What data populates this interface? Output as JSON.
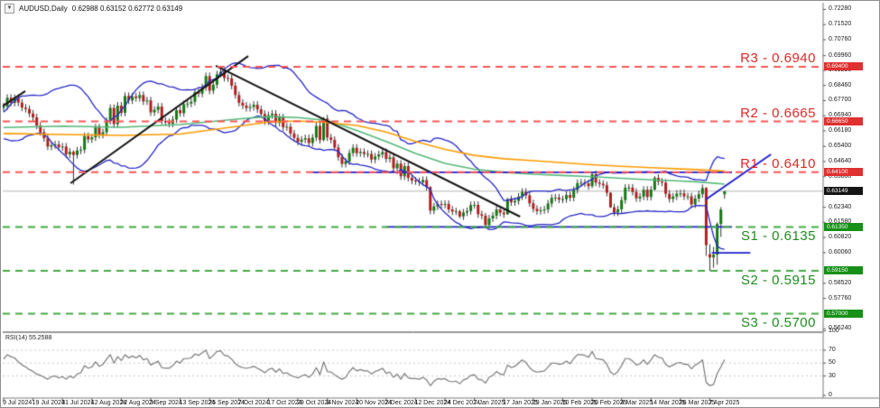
{
  "header": {
    "title_symbol": "AUDUSD,Daily",
    "title_ohlc": "0.62988 0.63152 0.62772 0.63149",
    "dropdown_glyph": "▼"
  },
  "colors": {
    "bull": "#157815",
    "bear": "#b02020",
    "wick": "#333333",
    "bollinger": "#2828c8",
    "ma_fast": "#55b87a",
    "ma_slow": "#ff9c00",
    "trend_black": "#151515",
    "object_blue": "#2020cc",
    "resistance_line": "#ff5555",
    "support_line": "#44aa44",
    "resistance_text": "#e02828",
    "support_text": "#1f8c1f",
    "badge_res": "#e03030",
    "badge_sup": "#169016",
    "badge_price": "#151515",
    "bid_line": "#b5b5b5",
    "rsi_line": "#7a7a7a",
    "rsi_grid": "#c9c9c9",
    "frame": "#8f8f8f"
  },
  "chart_data": {
    "type": "candlestick",
    "symbol": "AUDUSD",
    "timeframe": "Daily",
    "current_ohlc": {
      "open": "0.62988",
      "high": "0.63152",
      "low": "0.62772",
      "close": "0.63149"
    },
    "bid_line": 0.63149,
    "y_axis": {
      "min": 0.5611,
      "max": 0.7262,
      "ticks": [
        "0.72280",
        "0.71520",
        "0.70760",
        "0.69960",
        "0.69220",
        "0.68460",
        "0.67700",
        "0.66940",
        "0.66180",
        "0.65400",
        "0.64640",
        "0.63880",
        "0.62340",
        "0.61580",
        "0.60820",
        "0.60060",
        "0.58520",
        "0.57760",
        "0.56240"
      ]
    },
    "badges": [
      {
        "text": "0.69400",
        "price": 0.694,
        "kind": "res"
      },
      {
        "text": "0.66650",
        "price": 0.6665,
        "kind": "res"
      },
      {
        "text": "0.64100",
        "price": 0.641,
        "kind": "res"
      },
      {
        "text": "0.63149",
        "price": 0.63149,
        "kind": "price"
      },
      {
        "text": "0.61350",
        "price": 0.6135,
        "kind": "sup"
      },
      {
        "text": "0.59150",
        "price": 0.5915,
        "kind": "sup"
      },
      {
        "text": "0.57000",
        "price": 0.57,
        "kind": "sup"
      }
    ],
    "sr_levels": [
      {
        "label": "R3 - 0.6940",
        "price": 0.694,
        "kind": "res"
      },
      {
        "label": "R2 - 0.6665",
        "price": 0.6665,
        "kind": "res"
      },
      {
        "label": "R1 - 0.6410",
        "price": 0.641,
        "kind": "res"
      },
      {
        "label": "S1 - 0.6135",
        "price": 0.6135,
        "kind": "sup"
      },
      {
        "label": "S2 - 0.5915",
        "price": 0.5915,
        "kind": "sup"
      },
      {
        "label": "S3 - 0.5700",
        "price": 0.57,
        "kind": "sup"
      }
    ],
    "x_labels": [
      {
        "text": "9 Jul 2024",
        "bar": 0
      },
      {
        "text": "19 Jul 2024",
        "bar": 8
      },
      {
        "text": "31 Jul 2024",
        "bar": 16
      },
      {
        "text": "12 Aug 2024",
        "bar": 24
      },
      {
        "text": "22 Aug 2024",
        "bar": 32
      },
      {
        "text": "3 Sep 2024",
        "bar": 40
      },
      {
        "text": "13 Sep 2024",
        "bar": 48
      },
      {
        "text": "25 Sep 2024",
        "bar": 56
      },
      {
        "text": "7 Oct 2024",
        "bar": 64
      },
      {
        "text": "17 Oct 2024",
        "bar": 72
      },
      {
        "text": "29 Oct 2024",
        "bar": 80
      },
      {
        "text": "8 Nov 2024",
        "bar": 88
      },
      {
        "text": "20 Nov 2024",
        "bar": 96
      },
      {
        "text": "2 Dec 2024",
        "bar": 104
      },
      {
        "text": "12 Dec 2024",
        "bar": 112
      },
      {
        "text": "24 Dec 2024",
        "bar": 120
      },
      {
        "text": "7 Jan 2025",
        "bar": 128
      },
      {
        "text": "17 Jan 2025",
        "bar": 136
      },
      {
        "text": "29 Jan 2025",
        "bar": 144
      },
      {
        "text": "10 Feb 2025",
        "bar": 152
      },
      {
        "text": "20 Feb 2025",
        "bar": 160
      },
      {
        "text": "4 Mar 2025",
        "bar": 168
      },
      {
        "text": "14 Mar 2025",
        "bar": 176
      },
      {
        "text": "26 Mar 2025",
        "bar": 184
      },
      {
        "text": "7 Apr 2025",
        "bar": 192
      }
    ],
    "candles": {
      "first_open": 0.6733,
      "default_wick": 0.0018,
      "closes": [
        0.6741,
        0.6784,
        0.6759,
        0.6783,
        0.676,
        0.6735,
        0.6728,
        0.6705,
        0.6686,
        0.6644,
        0.6611,
        0.6581,
        0.6539,
        0.6546,
        0.655,
        0.6536,
        0.6539,
        0.65,
        0.6513,
        0.6497,
        0.6519,
        0.6523,
        0.6592,
        0.6575,
        0.6585,
        0.6635,
        0.6598,
        0.6611,
        0.6668,
        0.6733,
        0.6652,
        0.6745,
        0.6709,
        0.6793,
        0.6771,
        0.6791,
        0.6783,
        0.6798,
        0.6766,
        0.6771,
        0.6711,
        0.6724,
        0.674,
        0.6668,
        0.6661,
        0.6654,
        0.6675,
        0.6722,
        0.6707,
        0.6752,
        0.6755,
        0.6764,
        0.6812,
        0.6805,
        0.6837,
        0.6893,
        0.682,
        0.685,
        0.6902,
        0.6915,
        0.6884,
        0.6882,
        0.6845,
        0.6798,
        0.6759,
        0.6745,
        0.6733,
        0.6738,
        0.6749,
        0.6726,
        0.6703,
        0.6666,
        0.6697,
        0.6704,
        0.6658,
        0.6686,
        0.6636,
        0.6639,
        0.6605,
        0.6583,
        0.6563,
        0.6574,
        0.6581,
        0.6557,
        0.6584,
        0.6643,
        0.6572,
        0.668,
        0.6585,
        0.6573,
        0.6534,
        0.6486,
        0.6452,
        0.6464,
        0.6507,
        0.6533,
        0.6506,
        0.6512,
        0.6502,
        0.6502,
        0.6474,
        0.6489,
        0.65,
        0.6512,
        0.6477,
        0.6485,
        0.643,
        0.6453,
        0.639,
        0.6441,
        0.6382,
        0.6368,
        0.6365,
        0.636,
        0.6371,
        0.6336,
        0.6217,
        0.6238,
        0.625,
        0.6246,
        0.6251,
        0.6223,
        0.6213,
        0.6214,
        0.6188,
        0.6208,
        0.6215,
        0.6245,
        0.6246,
        0.6199,
        0.6192,
        0.6145,
        0.6178,
        0.6192,
        0.6223,
        0.6207,
        0.6199,
        0.6275,
        0.6259,
        0.6266,
        0.6288,
        0.6312,
        0.6294,
        0.6254,
        0.6226,
        0.6215,
        0.6219,
        0.6223,
        0.6253,
        0.6281,
        0.6283,
        0.6273,
        0.6275,
        0.6296,
        0.6282,
        0.6321,
        0.6355,
        0.6358,
        0.6354,
        0.634,
        0.64,
        0.6358,
        0.6352,
        0.6345,
        0.6307,
        0.6234,
        0.6208,
        0.6224,
        0.627,
        0.6332,
        0.6333,
        0.6311,
        0.6279,
        0.6288,
        0.6322,
        0.6286,
        0.6323,
        0.6382,
        0.6363,
        0.6358,
        0.6302,
        0.6276,
        0.6288,
        0.6302,
        0.6304,
        0.6289,
        0.6289,
        0.6248,
        0.6278,
        0.63,
        0.6331,
        0.6044,
        0.5982,
        0.5996,
        0.615,
        0.6223,
        0.6315
      ],
      "overrides": {
        "19": [
          0.6513,
          0.652,
          0.6348,
          0.6497
        ],
        "59": [
          0.6902,
          0.6942,
          0.689,
          0.6915
        ],
        "87": [
          0.6572,
          0.6688,
          0.6565,
          0.668
        ],
        "116": [
          0.6336,
          0.634,
          0.6199,
          0.6217
        ],
        "124": [
          0.6214,
          0.6222,
          0.6179,
          0.6188
        ],
        "131": [
          0.6192,
          0.6206,
          0.6131,
          0.6145
        ],
        "137": [
          0.6199,
          0.6282,
          0.6196,
          0.6275
        ],
        "160": [
          0.634,
          0.6408,
          0.633,
          0.64
        ],
        "165": [
          0.6307,
          0.631,
          0.623,
          0.6234
        ],
        "177": [
          0.6323,
          0.6391,
          0.6318,
          0.6382
        ],
        "191": [
          0.6331,
          0.6336,
          0.599,
          0.6044
        ],
        "192": [
          0.5998,
          0.6048,
          0.5915,
          0.5982
        ],
        "193": [
          0.5982,
          0.6035,
          0.593,
          0.5996
        ],
        "194": [
          0.5996,
          0.6158,
          0.5945,
          0.615
        ],
        "195": [
          0.615,
          0.6235,
          0.6085,
          0.6223
        ],
        "196": [
          0.6299,
          0.6315,
          0.6277,
          0.6315
        ]
      }
    },
    "pre_closes": [
      0.6618,
      0.66,
      0.6612,
      0.6607,
      0.6616,
      0.6591,
      0.6639,
      0.6664,
      0.664,
      0.6636,
      0.6646,
      0.6645,
      0.6647,
      0.6664,
      0.6687,
      0.6651,
      0.6662,
      0.6658,
      0.6695,
      0.6733
    ],
    "overlays": {
      "bollinger": {
        "window": 20,
        "mult": 2
      },
      "moving_averages": [
        {
          "name": "ma-fast-green",
          "points": [
            [
              0,
              0.6635
            ],
            [
              16,
              0.6642
            ],
            [
              32,
              0.6636
            ],
            [
              48,
              0.665
            ],
            [
              64,
              0.6678
            ],
            [
              72,
              0.669
            ],
            [
              80,
              0.6685
            ],
            [
              88,
              0.667
            ],
            [
              96,
              0.662
            ],
            [
              104,
              0.6565
            ],
            [
              112,
              0.6505
            ],
            [
              120,
              0.6455
            ],
            [
              128,
              0.6425
            ],
            [
              136,
              0.641
            ],
            [
              144,
              0.64
            ],
            [
              152,
              0.6394
            ],
            [
              160,
              0.6388
            ],
            [
              168,
              0.638
            ],
            [
              176,
              0.6372
            ],
            [
              184,
              0.6366
            ],
            [
              190,
              0.636
            ],
            [
              196,
              0.635
            ]
          ]
        },
        {
          "name": "ma-slow-orange",
          "points": [
            [
              0,
              0.6605
            ],
            [
              16,
              0.66
            ],
            [
              32,
              0.6595
            ],
            [
              48,
              0.6602
            ],
            [
              64,
              0.6642
            ],
            [
              72,
              0.6662
            ],
            [
              80,
              0.6668
            ],
            [
              88,
              0.666
            ],
            [
              96,
              0.6645
            ],
            [
              104,
              0.6612
            ],
            [
              112,
              0.6565
            ],
            [
              120,
              0.6525
            ],
            [
              128,
              0.6495
            ],
            [
              136,
              0.6478
            ],
            [
              144,
              0.6468
            ],
            [
              152,
              0.6458
            ],
            [
              160,
              0.6448
            ],
            [
              168,
              0.644
            ],
            [
              176,
              0.6433
            ],
            [
              184,
              0.6427
            ],
            [
              192,
              0.642
            ],
            [
              196,
              0.6416
            ]
          ]
        }
      ],
      "trendlines": [
        {
          "name": "uptrend-july",
          "stroke": "black",
          "p1": [
            -0.8,
            0.6736
          ],
          "p2": [
            5.9,
            0.6818
          ]
        },
        {
          "name": "uptrend-aug-sep",
          "stroke": "black",
          "p1": [
            18.2,
            0.6355
          ],
          "p2": [
            66.5,
            0.6994
          ]
        },
        {
          "name": "downtrend-oct-dec",
          "stroke": "black",
          "p1": [
            57.7,
            0.6945
          ],
          "p2": [
            140.4,
            0.6187
          ]
        },
        {
          "name": "recovery-projection",
          "stroke": "blue",
          "p1": [
            190.9,
            0.6273
          ],
          "p2": [
            208.6,
            0.65
          ]
        }
      ],
      "hlines": [
        {
          "name": "resistance-0641",
          "price": 0.641,
          "b1": 84,
          "b2": 198
        },
        {
          "name": "support-06135",
          "price": 0.6135,
          "b1": 104,
          "b2": 198
        },
        {
          "name": "crash-support-06005",
          "price": 0.6005,
          "b1": 192.5,
          "b2": 203
        }
      ]
    },
    "rsi": {
      "label": "RSI(14) 55.2588",
      "period": 14,
      "value": 55.2588,
      "scale": [
        100,
        70,
        50,
        30,
        0
      ],
      "dotted": [
        70,
        50,
        30
      ],
      "values": [
        56,
        63,
        60,
        58,
        52,
        47,
        44,
        40,
        37,
        33,
        31,
        28,
        25,
        29,
        30,
        27,
        29,
        25,
        30,
        27,
        33,
        35,
        46,
        42,
        44,
        52,
        45,
        48,
        56,
        63,
        50,
        60,
        54,
        63,
        58,
        61,
        58,
        62,
        55,
        57,
        47,
        50,
        53,
        43,
        42,
        42,
        46,
        53,
        50,
        57,
        57,
        58,
        64,
        62,
        66,
        70,
        57,
        62,
        68,
        69,
        62,
        61,
        56,
        49,
        45,
        43,
        42,
        43,
        45,
        42,
        39,
        35,
        40,
        42,
        36,
        41,
        34,
        35,
        31,
        29,
        27,
        30,
        32,
        28,
        33,
        43,
        32,
        52,
        37,
        36,
        32,
        28,
        25,
        28,
        37,
        43,
        38,
        40,
        38,
        38,
        33,
        37,
        39,
        42,
        34,
        36,
        28,
        33,
        25,
        34,
        27,
        26,
        26,
        25,
        28,
        24,
        15,
        22,
        26,
        25,
        26,
        22,
        21,
        22,
        18,
        24,
        26,
        31,
        32,
        25,
        24,
        19,
        28,
        31,
        37,
        33,
        32,
        47,
        43,
        45,
        50,
        55,
        51,
        43,
        38,
        36,
        37,
        38,
        44,
        50,
        50,
        48,
        49,
        53,
        49,
        57,
        63,
        63,
        62,
        59,
        68,
        57,
        56,
        55,
        48,
        36,
        32,
        37,
        46,
        57,
        57,
        53,
        47,
        49,
        55,
        48,
        55,
        63,
        59,
        58,
        48,
        44,
        47,
        50,
        51,
        48,
        48,
        41,
        47,
        50,
        55,
        20,
        15,
        17,
        34,
        44,
        55.26
      ]
    }
  }
}
